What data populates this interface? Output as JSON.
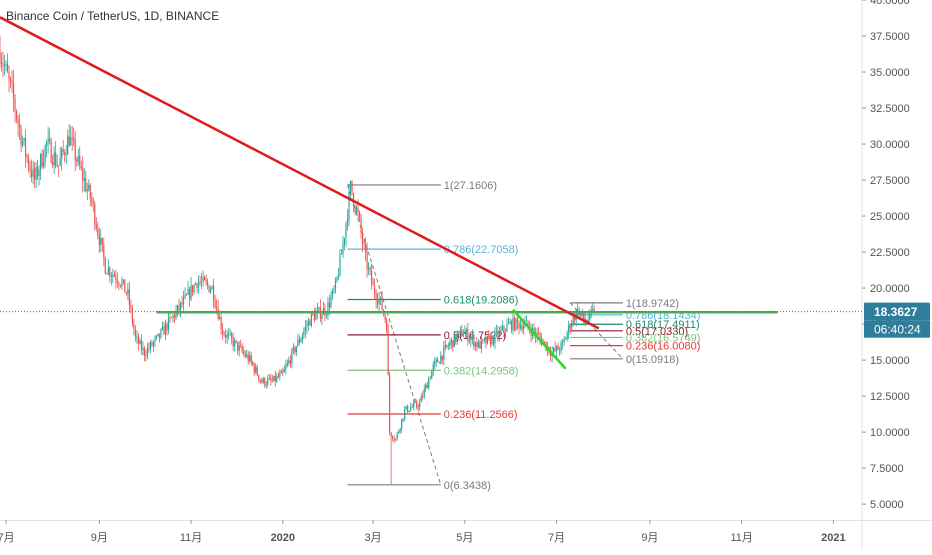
{
  "header": {
    "symbol_title": "Binance Coin / TetherUS, 1D, BINANCE"
  },
  "colors": {
    "up": "#26a69a",
    "down": "#ef5350",
    "trend_red": "#e01b1b",
    "trend_green": "#22dd22",
    "hline_green": "#4caf50",
    "fib_grey": "#787b86",
    "fib_blue": "#5ab4d6",
    "fib_teal": "#168d6b",
    "fib_dark_red": "#8c1a33",
    "fib_light_green": "#7cc47f",
    "fib_red": "#e53935",
    "price_tag": "#2e7d9a",
    "axis_text": "#555555",
    "tick": "#999999"
  },
  "chart_data": {
    "type": "candlestick",
    "ylim": [
      3.9,
      40.0
    ],
    "y_ticks": [
      "5.0000",
      "7.5000",
      "10.0000",
      "12.5000",
      "15.0000",
      "17.5000",
      "20.0000",
      "22.5000",
      "25.0000",
      "27.5000",
      "30.0000",
      "32.5000",
      "35.0000",
      "37.5000",
      "40.0000"
    ],
    "x_range": [
      "2019-06-27",
      "2021-01-20"
    ],
    "x_ticks": [
      {
        "date": "2019-07-01",
        "label": "7月"
      },
      {
        "date": "2019-09-01",
        "label": "9月"
      },
      {
        "date": "2019-11-01",
        "label": "11月"
      },
      {
        "date": "2020-01-01",
        "label": "2020"
      },
      {
        "date": "2020-03-01",
        "label": "3月"
      },
      {
        "date": "2020-05-01",
        "label": "5月"
      },
      {
        "date": "2020-07-01",
        "label": "7月"
      },
      {
        "date": "2020-09-01",
        "label": "9月"
      },
      {
        "date": "2020-11-01",
        "label": "11月"
      },
      {
        "date": "2021-01-01",
        "label": "2021"
      }
    ],
    "price_path": [
      [
        "2019-06-27",
        36.5
      ],
      [
        "2019-07-05",
        33.5
      ],
      [
        "2019-07-10",
        31.0
      ],
      [
        "2019-07-15",
        29.0
      ],
      [
        "2019-07-20",
        27.5
      ],
      [
        "2019-07-28",
        30.0
      ],
      [
        "2019-08-05",
        28.5
      ],
      [
        "2019-08-12",
        30.5
      ],
      [
        "2019-08-20",
        28.0
      ],
      [
        "2019-08-27",
        26.0
      ],
      [
        "2019-09-05",
        21.5
      ],
      [
        "2019-09-15",
        20.5
      ],
      [
        "2019-09-20",
        19.5
      ],
      [
        "2019-09-25",
        16.5
      ],
      [
        "2019-10-01",
        15.5
      ],
      [
        "2019-10-10",
        16.5
      ],
      [
        "2019-10-20",
        18.0
      ],
      [
        "2019-10-27",
        19.0
      ],
      [
        "2019-11-05",
        20.5
      ],
      [
        "2019-11-15",
        20.0
      ],
      [
        "2019-11-22",
        17.0
      ],
      [
        "2019-12-01",
        16.0
      ],
      [
        "2019-12-10",
        15.0
      ],
      [
        "2019-12-18",
        13.5
      ],
      [
        "2019-12-25",
        13.5
      ],
      [
        "2020-01-01",
        14.0
      ],
      [
        "2020-01-10",
        16.0
      ],
      [
        "2020-01-20",
        18.0
      ],
      [
        "2020-01-30",
        18.5
      ],
      [
        "2020-02-05",
        20.0
      ],
      [
        "2020-02-10",
        23.0
      ],
      [
        "2020-02-15",
        27.0
      ],
      [
        "2020-02-20",
        25.0
      ],
      [
        "2020-02-25",
        22.0
      ],
      [
        "2020-03-01",
        20.0
      ],
      [
        "2020-03-06",
        19.0
      ],
      [
        "2020-03-10",
        17.5
      ],
      [
        "2020-03-12",
        10.0
      ],
      [
        "2020-03-16",
        9.5
      ],
      [
        "2020-03-22",
        11.5
      ],
      [
        "2020-04-01",
        12.0
      ],
      [
        "2020-04-10",
        14.5
      ],
      [
        "2020-04-20",
        16.0
      ],
      [
        "2020-04-30",
        17.0
      ],
      [
        "2020-05-10",
        16.0
      ],
      [
        "2020-05-20",
        16.5
      ],
      [
        "2020-05-31",
        17.5
      ],
      [
        "2020-06-10",
        17.5
      ],
      [
        "2020-06-20",
        16.5
      ],
      [
        "2020-06-28",
        15.5
      ],
      [
        "2020-07-05",
        16.0
      ],
      [
        "2020-07-10",
        17.5
      ],
      [
        "2020-07-15",
        18.5
      ],
      [
        "2020-07-20",
        17.6
      ],
      [
        "2020-07-26",
        18.36
      ]
    ],
    "current_price": {
      "value": 18.3627,
      "label": "18.3627",
      "countdown": "06:40:24"
    },
    "drawings": {
      "trendline_red": [
        [
          "2019-06-27",
          38.8
        ],
        [
          "2020-07-29",
          17.2
        ]
      ],
      "trendline_green": [
        [
          "2020-06-02",
          18.5
        ],
        [
          "2020-07-07",
          14.4
        ]
      ],
      "horizontal_line": {
        "value": 18.32,
        "from": "2019-10-09",
        "to": "2020-11-25"
      },
      "fib_large": {
        "from": "2020-02-13",
        "to": "2020-04-15",
        "label_at": "2020-04-17",
        "levels": [
          {
            "label": "1(27.1606)",
            "value": 27.1606,
            "color": "#787b86"
          },
          {
            "label": "0.786(22.7058)",
            "value": 22.7058,
            "color": "#5ab4d6"
          },
          {
            "label": "0.618(19.2086)",
            "value": 19.2086,
            "color": "#168d6b"
          },
          {
            "label": "0.5(16.7522)",
            "value": 16.7522,
            "color": "#8c1a33"
          },
          {
            "label": "0.382(14.2958)",
            "value": 14.2958,
            "color": "#7cc47f"
          },
          {
            "label": "0.236(11.2566)",
            "value": 11.2566,
            "color": "#e53935"
          },
          {
            "label": "0(6.3438)",
            "value": 6.3438,
            "color": "#787b86"
          }
        ]
      },
      "fib_small": {
        "from": "2020-07-10",
        "to": "2020-08-14",
        "label_at": "2020-08-16",
        "levels": [
          {
            "label": "1(18.9742)",
            "value": 18.9742,
            "color": "#787b86"
          },
          {
            "label": "0.786(18.1434)",
            "value": 18.1434,
            "color": "#5ab4d6"
          },
          {
            "label": "0.618(17.4911)",
            "value": 17.4911,
            "color": "#168d6b"
          },
          {
            "label": "0.5(17.0330)",
            "value": 17.033,
            "color": "#8c1a33"
          },
          {
            "label": "0.382(16.5749)",
            "value": 16.5749,
            "color": "#7cc47f"
          },
          {
            "label": "0.236(16.0080)",
            "value": 16.008,
            "color": "#e53935"
          },
          {
            "label": "0(15.0918)",
            "value": 15.0918,
            "color": "#787b86"
          }
        ]
      }
    }
  }
}
